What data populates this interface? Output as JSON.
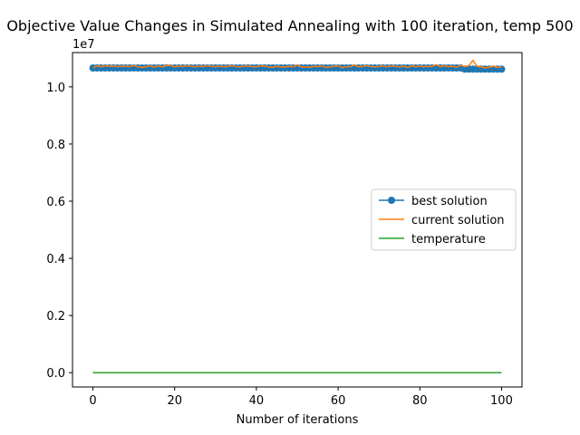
{
  "chart_data": {
    "type": "line",
    "title": "Objective Value Changes in Simulated Annealing with 100 iteration, temp 500",
    "xlabel": "Number of iterations",
    "ylabel": "",
    "y_offset_text": "1e7",
    "xlim": [
      -5,
      105
    ],
    "ylim": [
      -0.05,
      1.12
    ],
    "x_ticks": [
      0,
      20,
      40,
      60,
      80,
      100
    ],
    "x_tick_labels": [
      "0",
      "20",
      "40",
      "60",
      "80",
      "100"
    ],
    "y_ticks": [
      0.0,
      0.2,
      0.4,
      0.6,
      0.8,
      1.0
    ],
    "y_tick_labels": [
      "0.0",
      "0.2",
      "0.4",
      "0.6",
      "0.8",
      "1.0"
    ],
    "grid": false,
    "legend_position": "center-right",
    "x": [
      0,
      1,
      2,
      3,
      4,
      5,
      6,
      7,
      8,
      9,
      10,
      11,
      12,
      13,
      14,
      15,
      16,
      17,
      18,
      19,
      20,
      21,
      22,
      23,
      24,
      25,
      26,
      27,
      28,
      29,
      30,
      31,
      32,
      33,
      34,
      35,
      36,
      37,
      38,
      39,
      40,
      41,
      42,
      43,
      44,
      45,
      46,
      47,
      48,
      49,
      50,
      51,
      52,
      53,
      54,
      55,
      56,
      57,
      58,
      59,
      60,
      61,
      62,
      63,
      64,
      65,
      66,
      67,
      68,
      69,
      70,
      71,
      72,
      73,
      74,
      75,
      76,
      77,
      78,
      79,
      80,
      81,
      82,
      83,
      84,
      85,
      86,
      87,
      88,
      89,
      90,
      91,
      92,
      93,
      94,
      95,
      96,
      97,
      98,
      99,
      100
    ],
    "series": [
      {
        "name": "best solution",
        "color": "#1f77b4",
        "marker": "circle",
        "values": [
          1.066,
          1.066,
          1.066,
          1.066,
          1.066,
          1.066,
          1.066,
          1.066,
          1.066,
          1.066,
          1.066,
          1.066,
          1.066,
          1.066,
          1.066,
          1.066,
          1.066,
          1.066,
          1.066,
          1.066,
          1.066,
          1.066,
          1.066,
          1.066,
          1.066,
          1.066,
          1.066,
          1.066,
          1.066,
          1.066,
          1.066,
          1.066,
          1.066,
          1.066,
          1.066,
          1.066,
          1.066,
          1.066,
          1.066,
          1.066,
          1.066,
          1.066,
          1.066,
          1.066,
          1.066,
          1.066,
          1.066,
          1.066,
          1.066,
          1.066,
          1.066,
          1.066,
          1.066,
          1.066,
          1.066,
          1.066,
          1.066,
          1.066,
          1.066,
          1.066,
          1.066,
          1.066,
          1.066,
          1.066,
          1.066,
          1.066,
          1.066,
          1.066,
          1.066,
          1.066,
          1.066,
          1.066,
          1.066,
          1.066,
          1.066,
          1.066,
          1.066,
          1.066,
          1.066,
          1.066,
          1.066,
          1.066,
          1.066,
          1.066,
          1.066,
          1.066,
          1.066,
          1.066,
          1.066,
          1.066,
          1.066,
          1.062,
          1.062,
          1.062,
          1.062,
          1.062,
          1.062,
          1.062,
          1.062,
          1.062,
          1.062
        ]
      },
      {
        "name": "current solution",
        "color": "#ff7f0e",
        "marker": "none",
        "values": [
          1.066,
          1.074,
          1.07,
          1.074,
          1.072,
          1.073,
          1.071,
          1.072,
          1.072,
          1.071,
          1.075,
          1.07,
          1.068,
          1.07,
          1.074,
          1.069,
          1.073,
          1.07,
          1.074,
          1.076,
          1.07,
          1.073,
          1.071,
          1.074,
          1.072,
          1.07,
          1.073,
          1.071,
          1.074,
          1.072,
          1.07,
          1.073,
          1.07,
          1.072,
          1.074,
          1.071,
          1.07,
          1.073,
          1.072,
          1.071,
          1.07,
          1.074,
          1.072,
          1.07,
          1.068,
          1.072,
          1.07,
          1.069,
          1.072,
          1.07,
          1.077,
          1.069,
          1.07,
          1.068,
          1.072,
          1.071,
          1.073,
          1.068,
          1.07,
          1.072,
          1.074,
          1.067,
          1.071,
          1.07,
          1.077,
          1.07,
          1.072,
          1.074,
          1.071,
          1.07,
          1.072,
          1.073,
          1.07,
          1.073,
          1.072,
          1.07,
          1.072,
          1.068,
          1.074,
          1.07,
          1.073,
          1.07,
          1.072,
          1.071,
          1.078,
          1.07,
          1.074,
          1.071,
          1.072,
          1.069,
          1.075,
          1.071,
          1.074,
          1.093,
          1.072,
          1.07,
          1.066,
          1.069,
          1.072,
          1.068,
          1.07
        ]
      },
      {
        "name": "temperature",
        "color": "#2ca02c",
        "marker": "none",
        "values": [
          5e-05,
          5e-05,
          5e-05,
          5e-05,
          5e-05,
          5e-05,
          5e-05,
          5e-05,
          5e-05,
          5e-05,
          5e-05,
          5e-05,
          5e-05,
          5e-05,
          5e-05,
          5e-05,
          5e-05,
          5e-05,
          5e-05,
          5e-05,
          5e-05,
          5e-05,
          5e-05,
          5e-05,
          5e-05,
          5e-05,
          5e-05,
          5e-05,
          5e-05,
          5e-05,
          5e-05,
          5e-05,
          5e-05,
          5e-05,
          5e-05,
          5e-05,
          5e-05,
          5e-05,
          5e-05,
          5e-05,
          5e-05,
          5e-05,
          5e-05,
          5e-05,
          5e-05,
          5e-05,
          5e-05,
          5e-05,
          5e-05,
          5e-05,
          5e-05,
          5e-05,
          5e-05,
          5e-05,
          5e-05,
          5e-05,
          5e-05,
          5e-05,
          5e-05,
          5e-05,
          5e-05,
          5e-05,
          5e-05,
          5e-05,
          5e-05,
          5e-05,
          5e-05,
          5e-05,
          5e-05,
          5e-05,
          5e-05,
          5e-05,
          5e-05,
          5e-05,
          5e-05,
          5e-05,
          5e-05,
          5e-05,
          5e-05,
          5e-05,
          5e-05,
          5e-05,
          5e-05,
          5e-05,
          5e-05,
          5e-05,
          5e-05,
          5e-05,
          5e-05,
          5e-05,
          5e-05,
          5e-05,
          5e-05,
          5e-05,
          5e-05,
          5e-05,
          5e-05,
          5e-05,
          5e-05,
          5e-05,
          5e-05
        ]
      }
    ]
  }
}
